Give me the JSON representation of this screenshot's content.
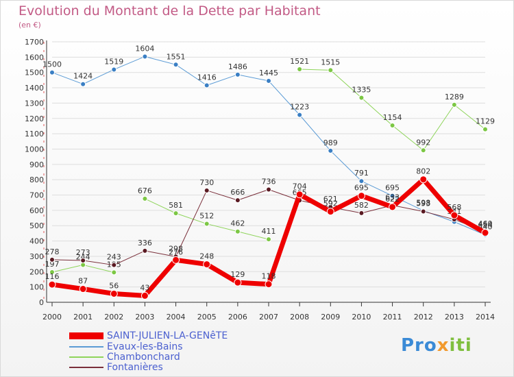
{
  "title": "Evolution du Montant de la Dette par Habitant",
  "subtitle": "(en €)",
  "brand": {
    "p1": "Pro",
    "p2": "x",
    "p3": "iti"
  },
  "colors": {
    "axis": "#333333",
    "grid": "#dddddd",
    "title": "#c25a85",
    "legend_text": "#4a5fcf"
  },
  "chart_data": {
    "type": "line",
    "title": "Evolution du Montant de la Dette par Habitant",
    "subtitle": "(en €)",
    "xlabel": "",
    "ylabel": "",
    "x": [
      "2000",
      "2001",
      "2002",
      "2003",
      "2004",
      "2005",
      "2006",
      "2007",
      "2008",
      "2009",
      "2010",
      "2011",
      "2012",
      "2013",
      "2014"
    ],
    "ylim": [
      0,
      1700
    ],
    "yticks": [
      0,
      100,
      200,
      300,
      400,
      500,
      600,
      700,
      800,
      900,
      1000,
      1100,
      1200,
      1300,
      1400,
      1500,
      1600,
      1700
    ],
    "grid": true,
    "legend_position": "bottom-left",
    "series": [
      {
        "name": "Evaux-les-Bains",
        "color": "#5b9bd5",
        "marker": "#3a7fc4",
        "width": 1,
        "values": [
          1500,
          1424,
          1519,
          1604,
          1551,
          1416,
          1486,
          1445,
          1223,
          989,
          791,
          695,
          598,
          525,
          440
        ],
        "labels": [
          "1500",
          "1424",
          "1519",
          "1604",
          "1551",
          "1416",
          "1486",
          "1445",
          "1223",
          "989",
          "791",
          "695",
          "598",
          "",
          "440"
        ]
      },
      {
        "name": "Chambonchard",
        "color": "#8ed45a",
        "marker": "#7cc744",
        "width": 1,
        "values": [
          197,
          244,
          195,
          676,
          581,
          512,
          462,
          411,
          1521,
          1515,
          1335,
          1154,
          992,
          1289,
          1129
        ],
        "breaks_after": [
          2,
          7
        ],
        "labels": [
          "197",
          "244",
          "195",
          "676",
          "581",
          "512",
          "462",
          "411",
          "1521",
          "1515",
          "1335",
          "1154",
          "992",
          "1289",
          "1129"
        ]
      },
      {
        "name": "Fontanières",
        "color": "#7a2f3a",
        "marker": "#5a1a22",
        "width": 1,
        "values": [
          278,
          273,
          243,
          336,
          298,
          730,
          666,
          736,
          665,
          621,
          582,
          633,
          593,
          541,
          460
        ],
        "labels": [
          "278",
          "273",
          "243",
          "336",
          "298",
          "730",
          "666",
          "736",
          "665",
          "621",
          "582",
          "633",
          "593",
          "541",
          "460"
        ]
      },
      {
        "name": "SAINT-JULIEN-LA-GENêTE",
        "color": "#ee0000",
        "marker": "#ee0000",
        "width": 7,
        "values": [
          116,
          87,
          56,
          43,
          276,
          248,
          129,
          118,
          704,
          592,
          695,
          622,
          802,
          568,
          454
        ],
        "labels": [
          "116",
          "87",
          "56",
          "43",
          "276",
          "248",
          "129",
          "118",
          "704",
          "592",
          "695",
          "622",
          "802",
          "568",
          "454"
        ]
      }
    ],
    "legend": [
      "SAINT-JULIEN-LA-GENêTE",
      "Evaux-les-Bains",
      "Chambonchard",
      "Fontanières"
    ]
  }
}
